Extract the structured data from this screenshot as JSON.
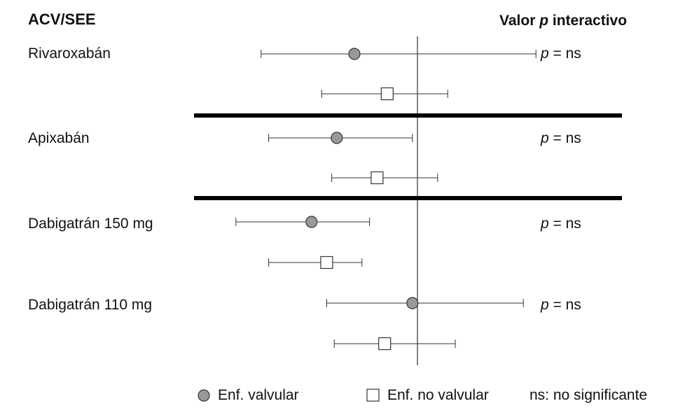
{
  "header": {
    "left_title": "ACV/SEE",
    "right_title_prefix": "Valor ",
    "right_title_p": "p",
    "right_title_suffix": " interactivo"
  },
  "chart_data": {
    "type": "forest",
    "reference_line": 1.0,
    "groups": [
      {
        "label": "Rivaroxabán",
        "p_text": "p",
        "p_value": " = ns",
        "valvular": {
          "point": 0.75,
          "lower": 0.38,
          "upper": 1.47
        },
        "non_valvular": {
          "point": 0.88,
          "lower": 0.62,
          "upper": 1.12
        }
      },
      {
        "label": "Apixabán",
        "p_text": "p",
        "p_value": " = ns",
        "valvular": {
          "point": 0.68,
          "lower": 0.41,
          "upper": 0.98
        },
        "non_valvular": {
          "point": 0.84,
          "lower": 0.66,
          "upper": 1.08
        }
      },
      {
        "label": "Dabigatrán 150 mg",
        "p_text": "p",
        "p_value": " = ns",
        "valvular": {
          "point": 0.58,
          "lower": 0.28,
          "upper": 0.81
        },
        "non_valvular": {
          "point": 0.64,
          "lower": 0.41,
          "upper": 0.78
        }
      },
      {
        "label": "Dabigatrán 110 mg",
        "p_text": "p",
        "p_value": " = ns",
        "valvular": {
          "point": 0.98,
          "lower": 0.64,
          "upper": 1.42
        },
        "non_valvular": {
          "point": 0.87,
          "lower": 0.67,
          "upper": 1.15
        }
      }
    ],
    "separators_after_groups": [
      0,
      1
    ],
    "legend": {
      "valvular": "Enf. valvular",
      "non_valvular": "Enf. no valvular",
      "note": "ns: no significante"
    },
    "colors": {
      "valvular_fill": "#999999",
      "marker_stroke": "#333333",
      "line": "#333333",
      "separator": "#000000"
    }
  }
}
